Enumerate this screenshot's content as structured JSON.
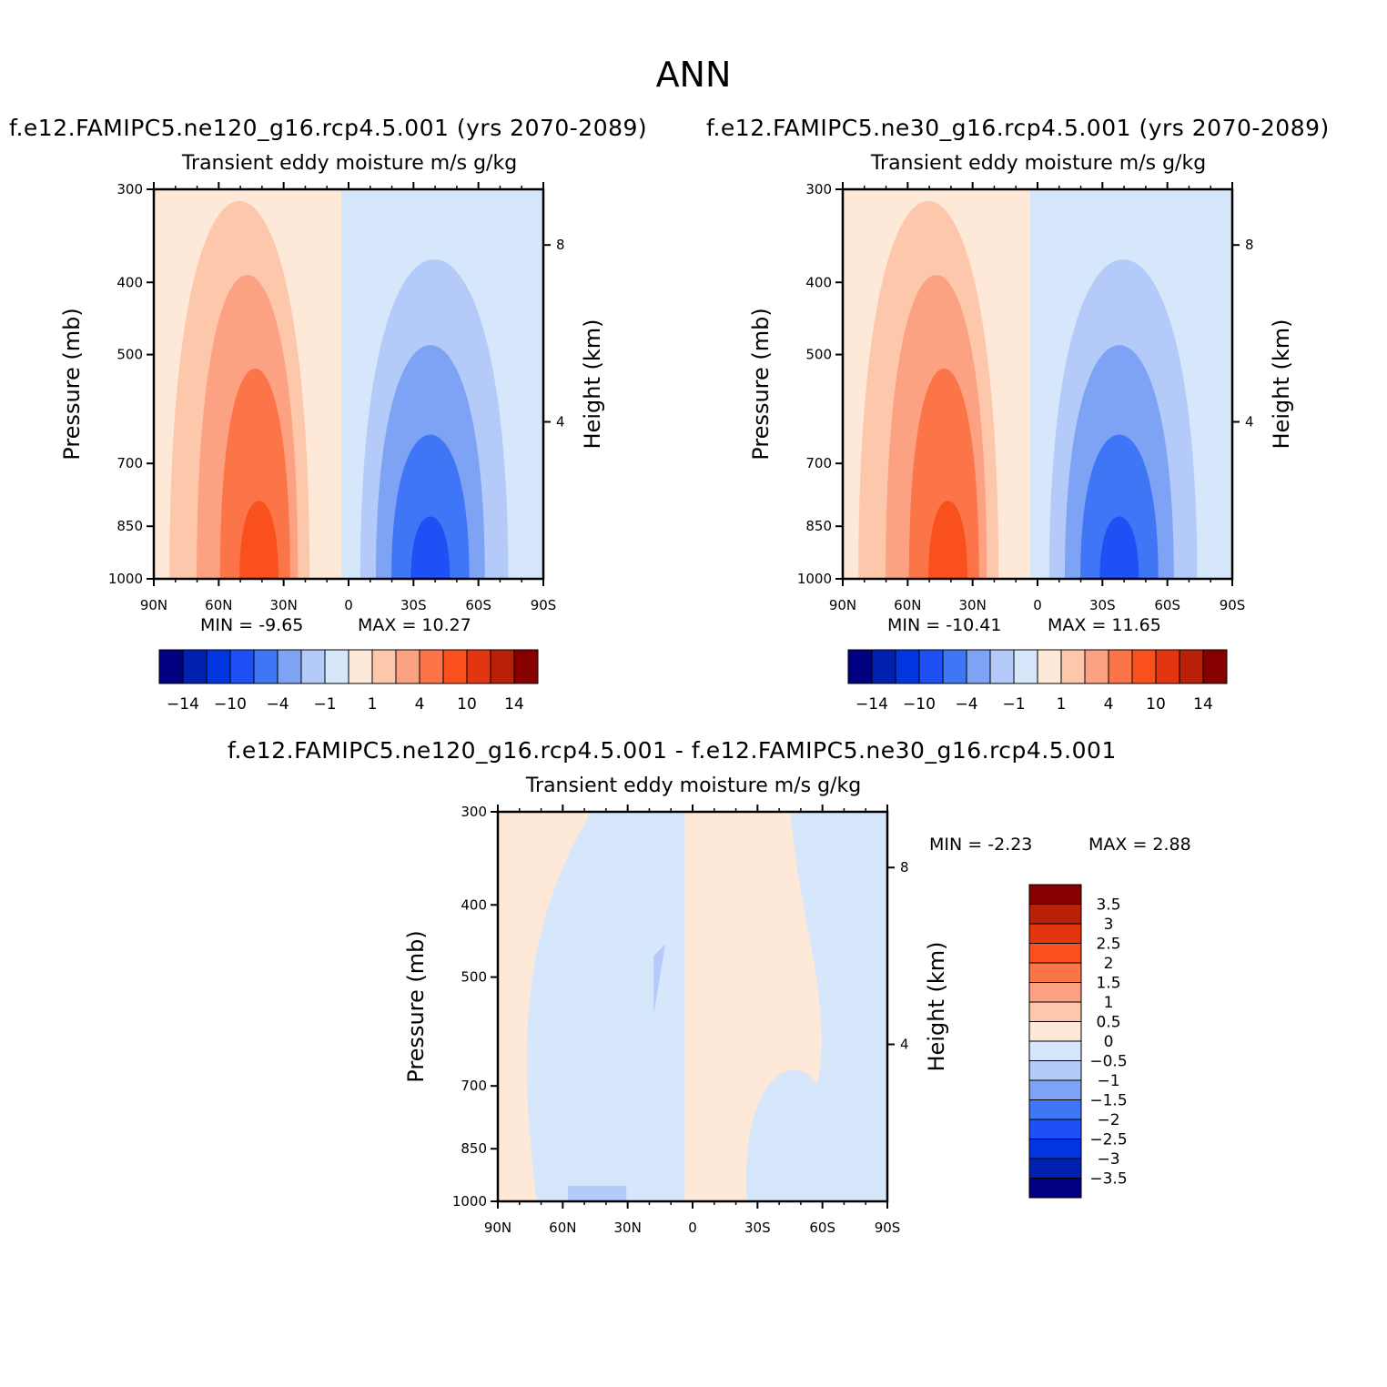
{
  "figure": {
    "title": "ANN",
    "colors": {
      "scale": [
        "#000080",
        "#0020b0",
        "#0035e0",
        "#1e50f5",
        "#3e76f5",
        "#7ea3f5",
        "#b4cbfa",
        "#d6e7fb",
        "#fee8d8",
        "#fdc7ac",
        "#fca283",
        "#fc7549",
        "#f9501e",
        "#e33510",
        "#b82105",
        "#860000"
      ],
      "line": "#000000"
    }
  },
  "chart_data": [
    {
      "id": "panel1",
      "type": "heatmap",
      "subtitle": "f.e12.FAMIPC5.ne120_g16.rcp4.5.001 (yrs 2070-2089)",
      "title": "Transient eddy moisture m/s g/kg",
      "ylabel": "Pressure (mb)",
      "y2label": "Height (km)",
      "xticks": [
        "90N",
        "60N",
        "30N",
        "0",
        "30S",
        "60S",
        "90S"
      ],
      "yticks": [
        "300",
        "400",
        "500",
        "700",
        "850",
        "1000"
      ],
      "y2ticks": [
        "8",
        "4"
      ],
      "min_text": "MIN =   -9.65",
      "max_text": "MAX =   10.27",
      "min": -9.65,
      "max": 10.27,
      "colorbar_labels": [
        "-14",
        "-10",
        "-4",
        "-1",
        "1",
        "4",
        "10",
        "14"
      ]
    },
    {
      "id": "panel2",
      "type": "heatmap",
      "subtitle": "f.e12.FAMIPC5.ne30_g16.rcp4.5.001 (yrs 2070-2089)",
      "title": "Transient eddy moisture m/s g/kg",
      "ylabel": "Pressure (mb)",
      "y2label": "Height (km)",
      "xticks": [
        "90N",
        "60N",
        "30N",
        "0",
        "30S",
        "60S",
        "90S"
      ],
      "yticks": [
        "300",
        "400",
        "500",
        "700",
        "850",
        "1000"
      ],
      "y2ticks": [
        "8",
        "4"
      ],
      "min_text": "MIN = -10.41",
      "max_text": "MAX =   11.65",
      "min": -10.41,
      "max": 11.65,
      "colorbar_labels": [
        "-14",
        "-10",
        "-4",
        "-1",
        "1",
        "4",
        "10",
        "14"
      ]
    },
    {
      "id": "diff",
      "type": "heatmap",
      "subtitle": "f.e12.FAMIPC5.ne120_g16.rcp4.5.001 - f.e12.FAMIPC5.ne30_g16.rcp4.5.001",
      "title": "Transient eddy moisture m/s g/kg",
      "ylabel": "Pressure (mb)",
      "y2label": "Height (km)",
      "xticks": [
        "90N",
        "60N",
        "30N",
        "0",
        "30S",
        "60S",
        "90S"
      ],
      "yticks": [
        "300",
        "400",
        "500",
        "700",
        "850",
        "1000"
      ],
      "y2ticks": [
        "8",
        "4"
      ],
      "min_text": "MIN =    -2.23",
      "max_text": "MAX =     2.88",
      "min": -2.23,
      "max": 2.88,
      "colorbar_labels": [
        "3.5",
        "3",
        "2.5",
        "2",
        "1.5",
        "1",
        "0.5",
        "0",
        "-0.5",
        "-1",
        "-1.5",
        "-2",
        "-2.5",
        "-3",
        "-3.5"
      ]
    }
  ]
}
